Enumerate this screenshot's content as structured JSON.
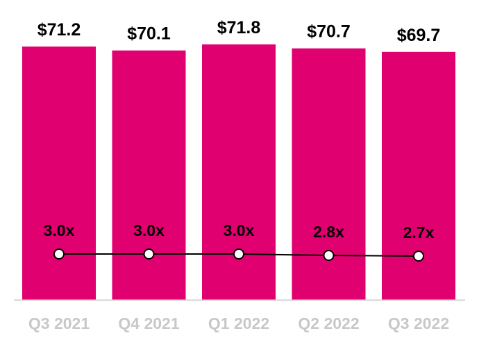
{
  "chart_data": {
    "type": "bar",
    "categories": [
      "Q3 2021",
      "Q4 2021",
      "Q1 2022",
      "Q2 2022",
      "Q3 2022"
    ],
    "series": [
      {
        "type": "bar",
        "values": [
          71.2,
          70.1,
          71.8,
          70.7,
          69.7
        ],
        "labels": [
          "$71.2",
          "$70.1",
          "$71.8",
          "$70.7",
          "$69.7"
        ],
        "color": "#e0006f"
      },
      {
        "type": "line",
        "values": [
          3.0,
          3.0,
          3.0,
          2.8,
          2.7
        ],
        "labels": [
          "3.0x",
          "3.0x",
          "3.0x",
          "2.8x",
          "2.7x"
        ],
        "color": "#000000",
        "marker_fill": "#ffffff"
      }
    ],
    "axis_color": "#d0d0d0",
    "tick_color": "#c8c8c8",
    "grid": false,
    "legend": "none"
  }
}
